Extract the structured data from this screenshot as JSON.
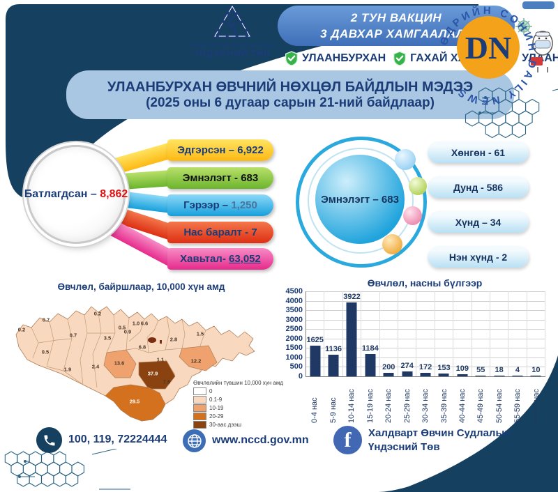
{
  "logo": {
    "line1": "ХАЛДВАРТ ӨВЧИН СУДЛАЛЫН",
    "line2": "ҮНДЭСНИЙ ТӨВ"
  },
  "vaccine_banner": {
    "line1": "2 ТУН ВАКЦИН",
    "line2": "3 ДАВХАР ХАМГААЛАЛТ"
  },
  "protects": [
    "УЛААНБУРХАН",
    "ГАХАЙ ХАВДАР",
    "УЛААНУУД"
  ],
  "title": {
    "line1": "УЛААНБУРХАН ӨВЧНИЙ НӨХЦӨЛ БАЙДЛЫН МЭДЭЭ",
    "line2": "(2025 оны 6 дугаар сарын 21-ний байдлаар)"
  },
  "confirmed": {
    "label": "Батлагдсан –",
    "value": "8,862",
    "value_color": "#e01212"
  },
  "ribbons": [
    {
      "label": "Эдгэрсэн – ",
      "value": "6,922",
      "c1": "#ffe361",
      "c2": "#fdb913",
      "label_color": "#1b3c77",
      "value_color": "#1b3c77",
      "underline": false
    },
    {
      "label": "Эмнэлэгт - ",
      "value": "683",
      "c1": "#b8e06a",
      "c2": "#6cb52d",
      "label_color": "#111111",
      "value_color": "#111111",
      "underline": false
    },
    {
      "label": "Гэрээр – ",
      "value": "1,250",
      "c1": "#8ed9f8",
      "c2": "#17a0dc",
      "label_color": "#1b3c77",
      "value_color": "#49759f",
      "underline": false
    },
    {
      "label": "Нас баралт - ",
      "value": "7",
      "c1": "#f3774a",
      "c2": "#dd2f14",
      "label_color": "#1b3c77",
      "value_color": "#1b3c77",
      "underline": false
    },
    {
      "label": "Хавьтал- ",
      "value": "63,052",
      "c1": "#f78cc5",
      "c2": "#e62a8c",
      "label_color": "#1b3c77",
      "value_color": "#1b3c77",
      "underline": true
    }
  ],
  "hospitalized": {
    "label": "Эмнэлэгт – 683"
  },
  "severity": [
    "Хөнгөн - 61",
    "Дунд - 586",
    "Хүнд – 34",
    "Нэн хүнд - 2"
  ],
  "chart_data": [
    {
      "type": "heatmap",
      "title": "Өвчлөл, байршлаар, 10,000 хүн амд",
      "legend_title": "Өвчлөлийн түвшин 10,000 хүн амд",
      "legend": [
        {
          "label": "0",
          "color": "#ffffff"
        },
        {
          "label": "0.1-9",
          "color": "#f8d9bf"
        },
        {
          "label": "10-19",
          "color": "#efa26e"
        },
        {
          "label": "20-29",
          "color": "#d4711f"
        },
        {
          "label": "30-аас дээш",
          "color": "#8a4210"
        }
      ],
      "values": [
        {
          "v": "0.2",
          "x": 16,
          "y": 43
        },
        {
          "v": "0.7",
          "x": 51,
          "y": 29
        },
        {
          "v": "0.5",
          "x": 50,
          "y": 75
        },
        {
          "v": "1.9",
          "x": 82,
          "y": 100
        },
        {
          "v": "0.7",
          "x": 90,
          "y": 51
        },
        {
          "v": "0.2",
          "x": 125,
          "y": 20
        },
        {
          "v": "3.5",
          "x": 139,
          "y": 55
        },
        {
          "v": "2.4",
          "x": 122,
          "y": 96
        },
        {
          "v": "13.6",
          "x": 156,
          "y": 91
        },
        {
          "v": "1.0",
          "x": 180,
          "y": 34
        },
        {
          "v": "6.6",
          "x": 192,
          "y": 34
        },
        {
          "v": "0.5",
          "x": 160,
          "y": 40
        },
        {
          "v": "0.9",
          "x": 168,
          "y": 46
        },
        {
          "v": "6.8",
          "x": 189,
          "y": 68
        },
        {
          "v": "1.1",
          "x": 215,
          "y": 86
        },
        {
          "v": "37.9",
          "x": 204,
          "y": 106,
          "light": true
        },
        {
          "v": "2.8",
          "x": 234,
          "y": 57
        },
        {
          "v": "1.5",
          "x": 272,
          "y": 49
        },
        {
          "v": "12.2",
          "x": 266,
          "y": 88
        },
        {
          "v": "7.5",
          "x": 224,
          "y": 118
        },
        {
          "v": "29.5",
          "x": 178,
          "y": 146,
          "light": true
        }
      ]
    },
    {
      "type": "bar",
      "title": "Өвчлөл, насны бүлгээр",
      "categories": [
        "0-4 нас",
        "5-9 нас",
        "10-14 нас",
        "15-19 нас",
        "20-24 нас",
        "25-29 нас",
        "30-34 нас",
        "35-39 нас",
        "40-44 нас",
        "45-49 нас",
        "50-54 нас",
        "55-59 нас",
        "60-70 нас"
      ],
      "values": [
        1625,
        1136,
        3922,
        1184,
        200,
        274,
        172,
        153,
        109,
        55,
        18,
        4,
        10
      ],
      "xlabel": "",
      "ylabel": "",
      "ylim": [
        0,
        4500
      ],
      "ytick_step": 500,
      "bar_color": "#1f3864",
      "grid": true,
      "legend_position": "none"
    }
  ],
  "footer": {
    "phone": "100, 119, 72224444",
    "website": "www.nccd.gov.mn",
    "facebook_line1": "Халдварт Өвчин Судлалын",
    "facebook_line2": "Үндэсний Төв"
  },
  "watermark": {
    "initials": "DN",
    "ring_text": "ӨДРИЙН СОНИН DAILY NEWS",
    "circle_color": "#f5a21b"
  },
  "colors": {
    "navy": "#15405f",
    "title_text": "#1b3c77",
    "panel_blue": "#a9c6e3",
    "banner_blue": "#4d82c8",
    "facebook": "#4268b3",
    "bar": "#1f3864"
  }
}
